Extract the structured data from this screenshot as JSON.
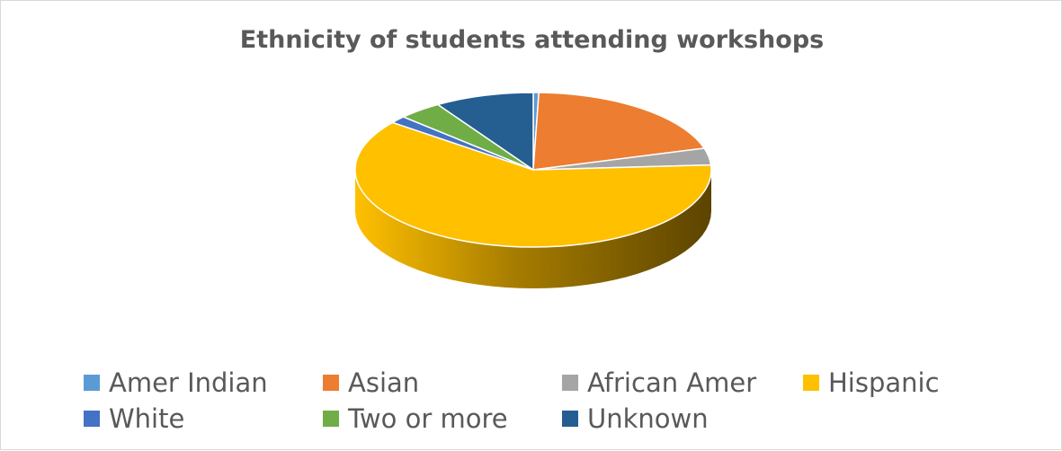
{
  "chart_data": {
    "type": "pie",
    "style": "3d",
    "title": "Ethnicity of students attending workshops",
    "categories": [
      "Amer Indian",
      "Asian",
      "African Amer",
      "Hispanic",
      "White",
      "Two or more",
      "Unknown"
    ],
    "values": [
      0.5,
      20.0,
      3.5,
      61.5,
      1.5,
      4.0,
      9.0
    ],
    "value_unit": "percent of students (estimated)",
    "colors": [
      "#5b9bd5",
      "#ed7d31",
      "#a5a5a5",
      "#ffc000",
      "#4472c4",
      "#70ad47",
      "#255e91"
    ],
    "legend_position": "bottom"
  }
}
